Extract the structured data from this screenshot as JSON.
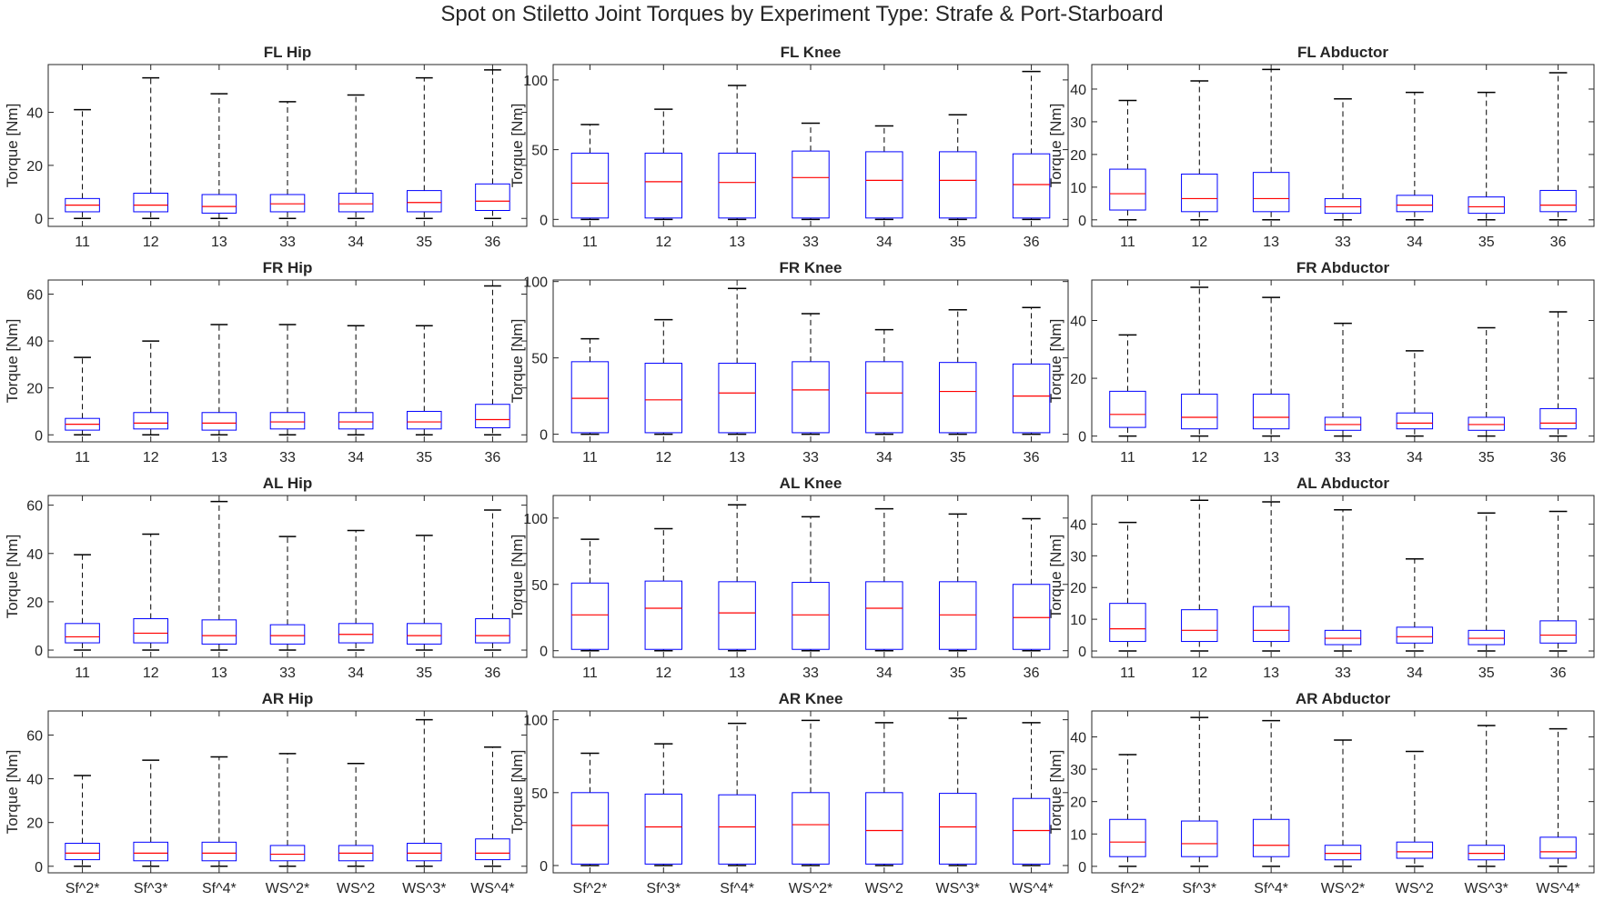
{
  "title": "Spot on Stiletto Joint Torques by Experiment Type: Strafe & Port-Starboard",
  "colors": {
    "box": "#0000ff",
    "median": "#ff0000",
    "whisker": "#000000",
    "axis": "#262626"
  },
  "chart_data": [
    {
      "type": "box",
      "title": "FL Hip",
      "ylabel": "Torque [Nm]",
      "ylim": [
        -3,
        58
      ],
      "yticks": [
        0,
        20,
        40
      ],
      "categories": [
        "11",
        "12",
        "13",
        "33",
        "34",
        "35",
        "36"
      ],
      "boxes": [
        [
          0,
          2.5,
          5,
          7.5,
          41
        ],
        [
          0,
          2.5,
          5,
          9.5,
          53
        ],
        [
          0,
          2,
          4.5,
          9,
          47
        ],
        [
          0,
          2.5,
          5.5,
          9,
          44
        ],
        [
          0,
          2.5,
          5.5,
          9.5,
          46.5
        ],
        [
          0,
          2.5,
          6,
          10.5,
          53
        ],
        [
          0,
          3,
          6.5,
          13,
          56
        ]
      ]
    },
    {
      "type": "box",
      "title": "FL Knee",
      "ylabel": "Torque [Nm]",
      "ylim": [
        -5,
        111
      ],
      "yticks": [
        0,
        50,
        100
      ],
      "categories": [
        "11",
        "12",
        "13",
        "33",
        "34",
        "35",
        "36"
      ],
      "boxes": [
        [
          0,
          1,
          26,
          47.5,
          68
        ],
        [
          0,
          1,
          27,
          47.5,
          79
        ],
        [
          0,
          1,
          26.5,
          47.5,
          96
        ],
        [
          0,
          1,
          30,
          49,
          69
        ],
        [
          0,
          1,
          28,
          48.5,
          67
        ],
        [
          0,
          1,
          28,
          48.5,
          75
        ],
        [
          0,
          1,
          25,
          47,
          106
        ]
      ]
    },
    {
      "type": "box",
      "title": "FL Abductor",
      "ylabel": "Torque [Nm]",
      "ylim": [
        -2,
        47.5
      ],
      "yticks": [
        0,
        10,
        20,
        30,
        40
      ],
      "categories": [
        "11",
        "12",
        "13",
        "33",
        "34",
        "35",
        "36"
      ],
      "boxes": [
        [
          0,
          3,
          8,
          15.5,
          36.5
        ],
        [
          0,
          2.5,
          6.5,
          14,
          42.5
        ],
        [
          0,
          2.5,
          6.5,
          14.5,
          46
        ],
        [
          0,
          2,
          4,
          6.5,
          37
        ],
        [
          0,
          2.5,
          4.5,
          7.5,
          39
        ],
        [
          0,
          2,
          4,
          7,
          39
        ],
        [
          0,
          2.5,
          4.5,
          9,
          45
        ]
      ]
    },
    {
      "type": "box",
      "title": "FR Hip",
      "ylabel": "Torque [Nm]",
      "ylim": [
        -3,
        66
      ],
      "yticks": [
        0,
        20,
        40,
        60
      ],
      "categories": [
        "11",
        "12",
        "13",
        "33",
        "34",
        "35",
        "36"
      ],
      "boxes": [
        [
          0,
          2,
          4.5,
          7,
          33
        ],
        [
          0,
          2.5,
          5,
          9.5,
          40
        ],
        [
          0,
          2,
          5,
          9.5,
          47
        ],
        [
          0,
          2.5,
          5.5,
          9.5,
          47
        ],
        [
          0,
          2.5,
          5.5,
          9.5,
          46.5
        ],
        [
          0,
          2.5,
          5.5,
          10,
          46.5
        ],
        [
          0,
          3,
          6.5,
          13,
          63.5
        ]
      ]
    },
    {
      "type": "box",
      "title": "FR Knee",
      "ylabel": "Torque [Nm]",
      "ylim": [
        -5,
        101
      ],
      "yticks": [
        0,
        50,
        100
      ],
      "categories": [
        "11",
        "12",
        "13",
        "33",
        "34",
        "35",
        "36"
      ],
      "boxes": [
        [
          0,
          1,
          23.5,
          47.5,
          62.5
        ],
        [
          0,
          1,
          22.5,
          46.5,
          75
        ],
        [
          0,
          1,
          27,
          46.5,
          95.5
        ],
        [
          0,
          1,
          29,
          47.5,
          79
        ],
        [
          0,
          1,
          27,
          47.5,
          68.5
        ],
        [
          0,
          1,
          28,
          47,
          81.5
        ],
        [
          0,
          1,
          25,
          46,
          83
        ]
      ]
    },
    {
      "type": "box",
      "title": "FR Abductor",
      "ylabel": "Torque [Nm]",
      "ylim": [
        -2,
        54
      ],
      "yticks": [
        0,
        20,
        40
      ],
      "categories": [
        "11",
        "12",
        "13",
        "33",
        "34",
        "35",
        "36"
      ],
      "boxes": [
        [
          0,
          3,
          7.5,
          15.5,
          35
        ],
        [
          0,
          2.5,
          6.5,
          14.5,
          51.5
        ],
        [
          0,
          2.5,
          6.5,
          14.5,
          48
        ],
        [
          0,
          2,
          4,
          6.5,
          39
        ],
        [
          0,
          2.5,
          4.5,
          8,
          29.5
        ],
        [
          0,
          2,
          4,
          6.5,
          37.5
        ],
        [
          0,
          2.5,
          4.5,
          9.5,
          43
        ]
      ]
    },
    {
      "type": "box",
      "title": "AL Hip",
      "ylabel": "Torque [Nm]",
      "ylim": [
        -3,
        64
      ],
      "yticks": [
        0,
        20,
        40,
        60
      ],
      "categories": [
        "11",
        "12",
        "13",
        "33",
        "34",
        "35",
        "36"
      ],
      "boxes": [
        [
          0,
          3,
          5.5,
          11,
          39.5
        ],
        [
          0,
          3,
          7,
          13,
          48
        ],
        [
          0,
          2.5,
          6,
          12.5,
          61.5
        ],
        [
          0,
          2.5,
          6,
          10.5,
          47
        ],
        [
          0,
          3,
          6.5,
          11,
          49.5
        ],
        [
          0,
          2.5,
          6,
          11,
          47.5
        ],
        [
          0,
          3,
          6,
          13,
          58
        ]
      ]
    },
    {
      "type": "box",
      "title": "AL Knee",
      "ylabel": "Torque [Nm]",
      "ylim": [
        -5,
        117
      ],
      "yticks": [
        0,
        50,
        100
      ],
      "categories": [
        "11",
        "12",
        "13",
        "33",
        "34",
        "35",
        "36"
      ],
      "boxes": [
        [
          0,
          1,
          27,
          51,
          84
        ],
        [
          0,
          1,
          32,
          52.5,
          92
        ],
        [
          0,
          1,
          28.5,
          52,
          110
        ],
        [
          0,
          1,
          27,
          51.5,
          101
        ],
        [
          0,
          1,
          32,
          52,
          107
        ],
        [
          0,
          1,
          27,
          52,
          103
        ],
        [
          0,
          1,
          25,
          50,
          99.5
        ]
      ]
    },
    {
      "type": "box",
      "title": "AL Abductor",
      "ylabel": "Torque [Nm]",
      "ylim": [
        -2,
        49
      ],
      "yticks": [
        0,
        10,
        20,
        30,
        40
      ],
      "categories": [
        "11",
        "12",
        "13",
        "33",
        "34",
        "35",
        "36"
      ],
      "boxes": [
        [
          0,
          3,
          7,
          15,
          40.5
        ],
        [
          0,
          3,
          6.5,
          13,
          47.5
        ],
        [
          0,
          3,
          6.5,
          14,
          47
        ],
        [
          0,
          2,
          4,
          6.5,
          44.5
        ],
        [
          0,
          2.5,
          4.5,
          7.5,
          29
        ],
        [
          0,
          2,
          4,
          6.5,
          43.5
        ],
        [
          0,
          2.5,
          5,
          9.5,
          44
        ]
      ]
    },
    {
      "type": "box",
      "title": "AR Hip",
      "ylabel": "Torque [Nm]",
      "ylim": [
        -3,
        71
      ],
      "yticks": [
        0,
        20,
        40,
        60
      ],
      "categories": [
        "Sf^2*",
        "Sf^3*",
        "Sf^4*",
        "WS^2*",
        "WS^2",
        "WS^3*",
        "WS^4*"
      ],
      "boxes": [
        [
          0,
          3,
          6,
          10.5,
          41.5
        ],
        [
          0,
          2.5,
          6,
          11,
          48.5
        ],
        [
          0,
          2.5,
          6,
          11,
          50
        ],
        [
          0,
          2.5,
          5.5,
          9.5,
          51.5
        ],
        [
          0,
          2.5,
          6,
          9.5,
          47
        ],
        [
          0,
          2.5,
          6,
          10.5,
          67
        ],
        [
          0,
          3,
          6,
          12.5,
          54.5
        ]
      ]
    },
    {
      "type": "box",
      "title": "AR Knee",
      "ylabel": "Torque [Nm]",
      "ylim": [
        -5,
        106
      ],
      "yticks": [
        0,
        50,
        100
      ],
      "categories": [
        "Sf^2*",
        "Sf^3*",
        "Sf^4*",
        "WS^2*",
        "WS^2",
        "WS^3*",
        "WS^4*"
      ],
      "boxes": [
        [
          0,
          1,
          27.5,
          50,
          77
        ],
        [
          0,
          1,
          26.5,
          49,
          83.5
        ],
        [
          0,
          1,
          26.5,
          48.5,
          97.5
        ],
        [
          0,
          1,
          28,
          50,
          99.5
        ],
        [
          0,
          1,
          24,
          50,
          98
        ],
        [
          0,
          1,
          26.5,
          49.5,
          101
        ],
        [
          0,
          1,
          24,
          46,
          98
        ]
      ]
    },
    {
      "type": "box",
      "title": "AR Abductor",
      "ylabel": "Torque [Nm]",
      "ylim": [
        -2,
        48
      ],
      "yticks": [
        0,
        10,
        20,
        30,
        40
      ],
      "categories": [
        "Sf^2*",
        "Sf^3*",
        "Sf^4*",
        "WS^2*",
        "WS^2",
        "WS^3*",
        "WS^4*"
      ],
      "boxes": [
        [
          0,
          3,
          7.5,
          14.5,
          34.5
        ],
        [
          0,
          3,
          7,
          14,
          46
        ],
        [
          0,
          3,
          6.5,
          14.5,
          45
        ],
        [
          0,
          2,
          4,
          6.5,
          39
        ],
        [
          0,
          2.5,
          4.5,
          7.5,
          35.5
        ],
        [
          0,
          2,
          4,
          6.5,
          43.5
        ],
        [
          0,
          2.5,
          4.5,
          9,
          42.5
        ]
      ]
    }
  ]
}
